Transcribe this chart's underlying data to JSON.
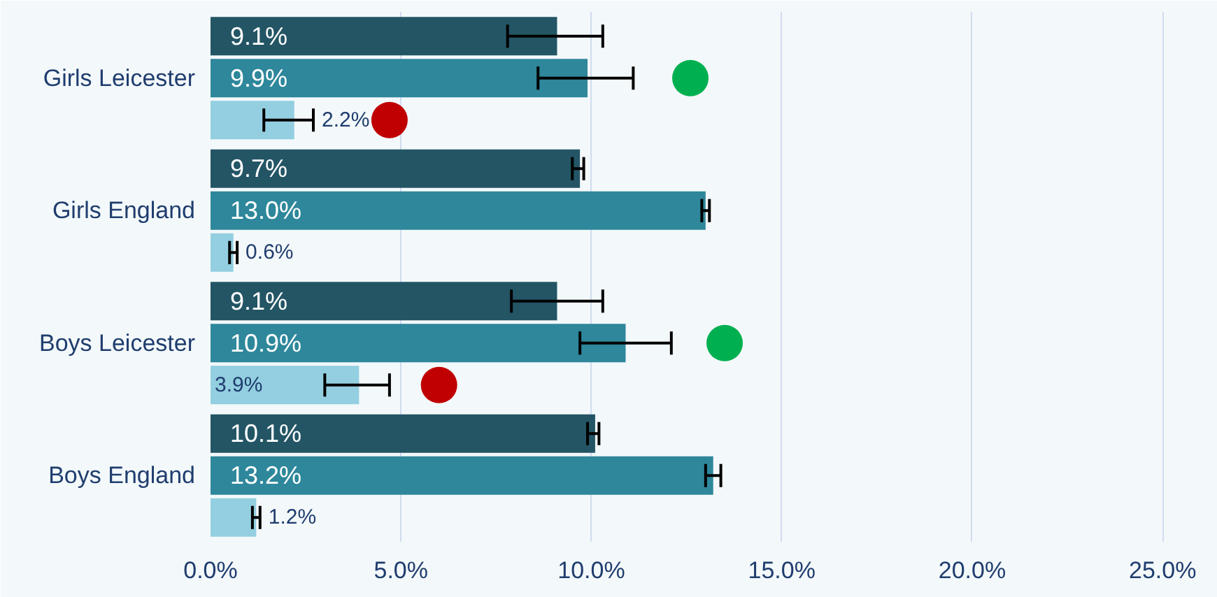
{
  "chart_data": {
    "type": "bar",
    "orientation": "horizontal",
    "categories": [
      "Girls Leicester",
      "Girls England",
      "Boys Leicester",
      "Boys England"
    ],
    "series": [
      {
        "color": "#235565",
        "values": [
          9.1,
          9.7,
          9.1,
          10.1
        ],
        "value_labels": [
          "9.1%",
          "9.7%",
          "9.1%",
          "10.1%"
        ],
        "errors": [
          [
            7.8,
            10.3
          ],
          [
            9.5,
            9.8
          ],
          [
            7.9,
            10.3
          ],
          [
            9.9,
            10.2
          ]
        ]
      },
      {
        "color": "#2e879b",
        "values": [
          9.9,
          13.0,
          10.9,
          13.2
        ],
        "value_labels": [
          "9.9%",
          "13.0%",
          "10.9%",
          "13.2%"
        ],
        "errors": [
          [
            8.6,
            11.1
          ],
          [
            12.9,
            13.1
          ],
          [
            9.7,
            12.1
          ],
          [
            13.0,
            13.4
          ]
        ]
      },
      {
        "color": "#93cfe0",
        "values": [
          2.2,
          0.6,
          3.9,
          1.2
        ],
        "value_labels": [
          "2.2%",
          "0.6%",
          "3.9%",
          "1.2%"
        ],
        "errors": [
          [
            1.4,
            2.7
          ],
          [
            0.5,
            0.7
          ],
          [
            3.0,
            4.7
          ],
          [
            1.1,
            1.3
          ]
        ]
      },
      {
        "type": "scatter",
        "color": "#00b050",
        "values": [
          12.6,
          null,
          13.5,
          null
        ]
      },
      {
        "type": "scatter",
        "color": "#c00000",
        "values": [
          4.7,
          null,
          6.0,
          null
        ]
      }
    ],
    "xlim": [
      0,
      26.3
    ],
    "xticks": [
      {
        "value": 0,
        "label": "0.0%"
      },
      {
        "value": 5,
        "label": "5.0%"
      },
      {
        "value": 10,
        "label": "10.0%"
      },
      {
        "value": 15,
        "label": "15.0%"
      },
      {
        "value": 20,
        "label": "20.0%"
      },
      {
        "value": 25,
        "label": "25.0%"
      }
    ],
    "grid": "x",
    "marker": "circle"
  }
}
